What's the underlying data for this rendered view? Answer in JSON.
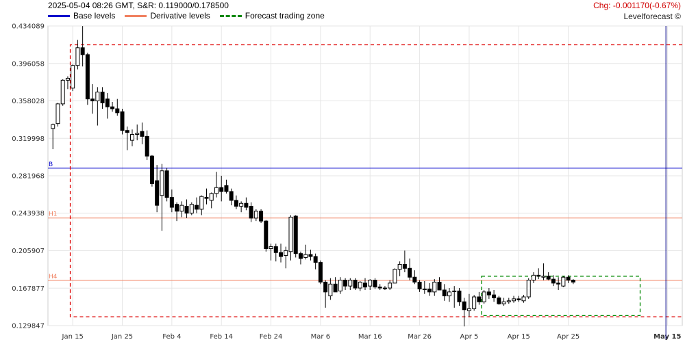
{
  "header": {
    "info": "2025-05-04 08:26 GMT, S&R: 0.119000/0.178500",
    "change": "Chg: -0.001170(-0.67%)",
    "brand": "Levelforecast ©"
  },
  "legend": [
    {
      "label": "Base levels",
      "color": "#0000cc",
      "style": "solid"
    },
    {
      "label": "Derivative levels",
      "color": "#f08060",
      "style": "solid"
    },
    {
      "label": "Forecast trading zone",
      "color": "#008800",
      "style": "dashed"
    }
  ],
  "chart_data": {
    "type": "candlestick",
    "ylim": [
      0.129847,
      0.434089
    ],
    "y_ticks": [
      "0.434089",
      "0.396058",
      "0.358028",
      "0.319998",
      "0.281968",
      "0.243938",
      "0.205907",
      "0.167877",
      "0.129847"
    ],
    "x_ticks": [
      "Jan 15",
      "Jan 25",
      "Feb 4",
      "Feb 14",
      "Feb 24",
      "Mar 6",
      "Mar 16",
      "Mar 26",
      "Apr 5",
      "Apr 15",
      "Apr 25",
      "May 15"
    ],
    "x_tick_days": [
      15,
      25,
      35,
      45,
      55,
      65,
      75,
      85,
      95,
      105,
      115,
      135
    ],
    "x_day_range": [
      10,
      138
    ],
    "levels": [
      {
        "label": "B",
        "value": 0.2897,
        "color": "#0000cc"
      },
      {
        "label": "H1",
        "value": 0.2391,
        "color": "#f08060"
      },
      {
        "label": "H4",
        "value": 0.1758,
        "color": "#f08060"
      }
    ],
    "red_box": {
      "day_start": 14.5,
      "day_end": 138,
      "top": 0.415,
      "bottom": 0.1388,
      "color": "#dd0000"
    },
    "forecast_zone": {
      "day_start": 97.5,
      "day_end": 129.5,
      "top": 0.18,
      "bottom": 0.14,
      "color": "#008800"
    },
    "forecast_line_day": 134.7,
    "candles": [
      [
        11,
        0.33,
        0.335,
        0.309,
        0.334
      ],
      [
        12,
        0.335,
        0.356,
        0.332,
        0.355
      ],
      [
        13,
        0.355,
        0.38,
        0.353,
        0.379
      ],
      [
        14,
        0.379,
        0.383,
        0.37,
        0.381
      ],
      [
        15,
        0.371,
        0.395,
        0.368,
        0.394
      ],
      [
        16,
        0.394,
        0.42,
        0.39,
        0.412
      ],
      [
        17,
        0.412,
        0.434,
        0.393,
        0.405
      ],
      [
        18,
        0.405,
        0.407,
        0.354,
        0.36
      ],
      [
        19,
        0.36,
        0.375,
        0.345,
        0.358
      ],
      [
        20,
        0.358,
        0.372,
        0.333,
        0.367
      ],
      [
        21,
        0.367,
        0.372,
        0.35,
        0.356
      ],
      [
        22,
        0.36,
        0.366,
        0.34,
        0.352
      ],
      [
        23,
        0.352,
        0.357,
        0.347,
        0.35
      ],
      [
        24,
        0.35,
        0.36,
        0.343,
        0.346
      ],
      [
        25,
        0.347,
        0.35,
        0.324,
        0.328
      ],
      [
        26,
        0.328,
        0.332,
        0.308,
        0.326
      ],
      [
        27,
        0.318,
        0.329,
        0.312,
        0.324
      ],
      [
        28,
        0.324,
        0.334,
        0.318,
        0.325
      ],
      [
        29,
        0.327,
        0.336,
        0.314,
        0.322
      ],
      [
        30,
        0.322,
        0.328,
        0.298,
        0.302
      ],
      [
        31,
        0.302,
        0.303,
        0.271,
        0.274
      ],
      [
        32,
        0.277,
        0.293,
        0.245,
        0.252
      ],
      [
        33,
        0.262,
        0.294,
        0.226,
        0.287
      ],
      [
        34,
        0.287,
        0.29,
        0.256,
        0.26
      ],
      [
        35,
        0.26,
        0.268,
        0.245,
        0.25
      ],
      [
        36,
        0.253,
        0.255,
        0.236,
        0.246
      ],
      [
        37,
        0.246,
        0.256,
        0.24,
        0.252
      ],
      [
        38,
        0.251,
        0.258,
        0.239,
        0.244
      ],
      [
        39,
        0.244,
        0.255,
        0.242,
        0.253
      ],
      [
        40,
        0.252,
        0.26,
        0.244,
        0.248
      ],
      [
        41,
        0.248,
        0.262,
        0.242,
        0.261
      ],
      [
        42,
        0.26,
        0.269,
        0.253,
        0.259
      ],
      [
        43,
        0.257,
        0.265,
        0.249,
        0.264
      ],
      [
        44,
        0.264,
        0.286,
        0.26,
        0.27
      ],
      [
        45,
        0.27,
        0.282,
        0.256,
        0.266
      ],
      [
        46,
        0.272,
        0.278,
        0.264,
        0.266
      ],
      [
        47,
        0.266,
        0.269,
        0.252,
        0.257
      ],
      [
        48,
        0.257,
        0.262,
        0.248,
        0.251
      ],
      [
        49,
        0.251,
        0.256,
        0.245,
        0.254
      ],
      [
        50,
        0.254,
        0.26,
        0.247,
        0.25
      ],
      [
        51,
        0.251,
        0.255,
        0.235,
        0.239
      ],
      [
        52,
        0.239,
        0.248,
        0.236,
        0.246
      ],
      [
        53,
        0.246,
        0.248,
        0.234,
        0.236
      ],
      [
        54,
        0.236,
        0.237,
        0.205,
        0.208
      ],
      [
        55,
        0.208,
        0.213,
        0.196,
        0.21
      ],
      [
        56,
        0.21,
        0.213,
        0.195,
        0.204
      ],
      [
        57,
        0.204,
        0.213,
        0.194,
        0.2
      ],
      [
        58,
        0.201,
        0.21,
        0.188,
        0.206
      ],
      [
        59,
        0.205,
        0.242,
        0.196,
        0.24
      ],
      [
        60,
        0.241,
        0.242,
        0.199,
        0.203
      ],
      [
        61,
        0.203,
        0.205,
        0.192,
        0.198
      ],
      [
        62,
        0.199,
        0.212,
        0.197,
        0.202
      ],
      [
        63,
        0.202,
        0.207,
        0.196,
        0.2
      ],
      [
        64,
        0.2,
        0.203,
        0.187,
        0.194
      ],
      [
        65,
        0.194,
        0.196,
        0.172,
        0.174
      ],
      [
        66,
        0.174,
        0.176,
        0.148,
        0.164
      ],
      [
        67,
        0.16,
        0.178,
        0.156,
        0.172
      ],
      [
        68,
        0.172,
        0.179,
        0.164,
        0.164
      ],
      [
        69,
        0.165,
        0.179,
        0.162,
        0.176
      ],
      [
        70,
        0.176,
        0.178,
        0.166,
        0.17
      ],
      [
        71,
        0.17,
        0.178,
        0.166,
        0.176
      ],
      [
        72,
        0.176,
        0.178,
        0.166,
        0.168
      ],
      [
        73,
        0.168,
        0.175,
        0.165,
        0.174
      ],
      [
        74,
        0.173,
        0.178,
        0.166,
        0.169
      ],
      [
        75,
        0.17,
        0.177,
        0.166,
        0.176
      ],
      [
        76,
        0.176,
        0.178,
        0.167,
        0.169
      ],
      [
        77,
        0.169,
        0.172,
        0.166,
        0.168
      ],
      [
        78,
        0.168,
        0.17,
        0.166,
        0.168
      ],
      [
        79,
        0.168,
        0.176,
        0.166,
        0.173
      ],
      [
        80,
        0.173,
        0.188,
        0.173,
        0.187
      ],
      [
        81,
        0.187,
        0.195,
        0.18,
        0.192
      ],
      [
        82,
        0.192,
        0.206,
        0.184,
        0.188
      ],
      [
        83,
        0.188,
        0.198,
        0.176,
        0.179
      ],
      [
        84,
        0.179,
        0.186,
        0.172,
        0.174
      ],
      [
        85,
        0.174,
        0.176,
        0.164,
        0.167
      ],
      [
        86,
        0.167,
        0.175,
        0.162,
        0.167
      ],
      [
        87,
        0.167,
        0.173,
        0.16,
        0.164
      ],
      [
        88,
        0.164,
        0.177,
        0.16,
        0.174
      ],
      [
        89,
        0.174,
        0.179,
        0.166,
        0.166
      ],
      [
        90,
        0.166,
        0.172,
        0.155,
        0.16
      ],
      [
        91,
        0.16,
        0.168,
        0.154,
        0.164
      ],
      [
        92,
        0.165,
        0.17,
        0.148,
        0.165
      ],
      [
        93,
        0.165,
        0.168,
        0.15,
        0.154
      ],
      [
        94,
        0.154,
        0.158,
        0.129,
        0.146
      ],
      [
        95,
        0.145,
        0.162,
        0.139,
        0.147
      ],
      [
        96,
        0.147,
        0.161,
        0.145,
        0.159
      ],
      [
        97,
        0.159,
        0.164,
        0.151,
        0.154
      ],
      [
        98,
        0.154,
        0.166,
        0.152,
        0.164
      ],
      [
        99,
        0.164,
        0.168,
        0.157,
        0.161
      ],
      [
        100,
        0.161,
        0.166,
        0.154,
        0.158
      ],
      [
        101,
        0.158,
        0.16,
        0.151,
        0.152
      ],
      [
        102,
        0.152,
        0.158,
        0.15,
        0.154
      ],
      [
        103,
        0.154,
        0.158,
        0.152,
        0.155
      ],
      [
        104,
        0.155,
        0.16,
        0.153,
        0.157
      ],
      [
        105,
        0.157,
        0.16,
        0.154,
        0.156
      ],
      [
        106,
        0.155,
        0.161,
        0.153,
        0.159
      ],
      [
        107,
        0.159,
        0.178,
        0.157,
        0.176
      ],
      [
        108,
        0.176,
        0.184,
        0.173,
        0.181
      ],
      [
        109,
        0.181,
        0.188,
        0.177,
        0.18
      ],
      [
        110,
        0.179,
        0.193,
        0.176,
        0.18
      ],
      [
        111,
        0.18,
        0.184,
        0.176,
        0.177
      ],
      [
        112,
        0.177,
        0.181,
        0.17,
        0.173
      ],
      [
        113,
        0.173,
        0.179,
        0.166,
        0.172
      ],
      [
        114,
        0.17,
        0.18,
        0.169,
        0.179
      ],
      [
        115,
        0.179,
        0.181,
        0.173,
        0.176
      ],
      [
        116,
        0.176,
        0.177,
        0.172,
        0.174
      ]
    ]
  }
}
